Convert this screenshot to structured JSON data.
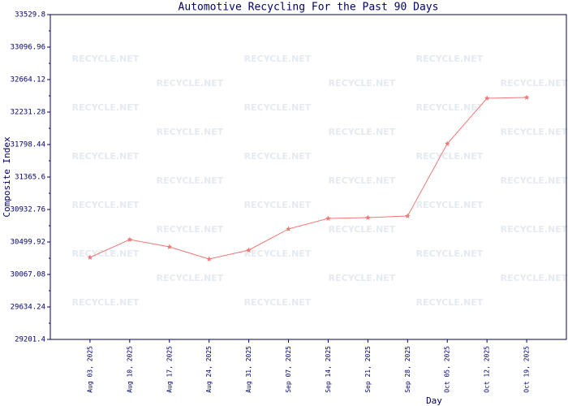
{
  "chart_data": {
    "type": "line",
    "title": "Automotive Recycling For the Past 90 Days",
    "x_label": "Day",
    "y_label": "Composite Index",
    "watermark": "RECYCLE.NET",
    "categories": [
      "Aug 03, 2025",
      "Aug 10, 2025",
      "Aug 17, 2025",
      "Aug 24, 2025",
      "Aug 31, 2025",
      "Sep 07, 2025",
      "Sep 14, 2025",
      "Sep 21, 2025",
      "Sep 28, 2025",
      "Oct 05, 2025",
      "Oct 12, 2025",
      "Oct 19, 2025"
    ],
    "series": [
      {
        "name": "Composite Index",
        "color": "#f07878",
        "values": [
          30294.3,
          30532.4,
          30435.0,
          30272.7,
          30391.7,
          30673.1,
          30813.7,
          30824.5,
          30846.2,
          31809.3,
          32415.2,
          32426.1
        ]
      }
    ],
    "ylim": [
      29201.4,
      33529.8
    ],
    "yticks": [
      29201.4,
      29634.24,
      30067.08,
      30499.92,
      30932.76,
      31365.6,
      31798.44,
      32231.28,
      32664.12,
      33096.96,
      33529.8
    ],
    "grid": false
  }
}
